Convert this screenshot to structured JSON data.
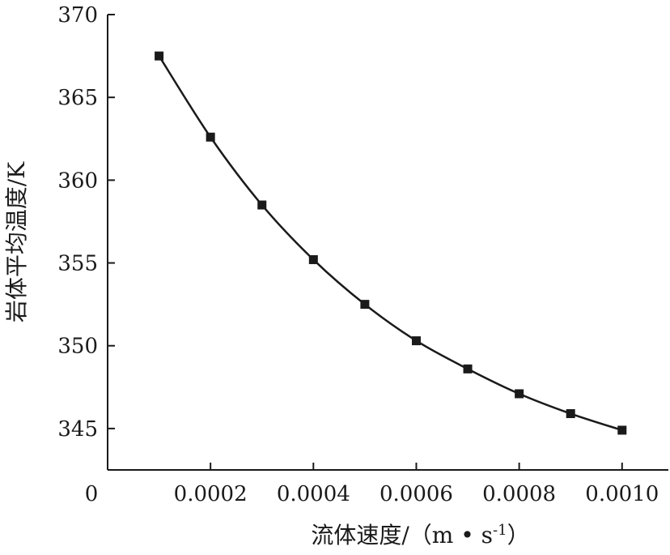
{
  "chart_data": {
    "type": "line",
    "title": "",
    "xlabel": "流体速度/（m • s",
    "xlabel_sup": "-1",
    "xlabel_close": "）",
    "ylabel": "岩体平均温度/K",
    "xlim": [
      0,
      0.00109
    ],
    "ylim": [
      342.5,
      370
    ],
    "x_ticks": [
      0.0002,
      0.0004,
      0.0006,
      0.0008,
      0.001
    ],
    "x_tick_labels": [
      "0.0002",
      "0.0004",
      "0.0006",
      "0.0008",
      "0.0010"
    ],
    "x_origin_label": "0",
    "y_ticks": [
      345,
      350,
      355,
      360,
      365,
      370
    ],
    "y_tick_labels": [
      "345",
      "350",
      "355",
      "360",
      "365",
      "370"
    ],
    "grid": false,
    "series": [
      {
        "marker": "square",
        "color": "#1a1a1a",
        "x": [
          0.0001,
          0.0002,
          0.0003,
          0.0004,
          0.0005,
          0.0006,
          0.0007,
          0.0008,
          0.0009,
          0.001
        ],
        "y": [
          367.5,
          362.6,
          358.5,
          355.2,
          352.5,
          350.3,
          348.6,
          347.1,
          345.9,
          344.9
        ]
      }
    ]
  }
}
